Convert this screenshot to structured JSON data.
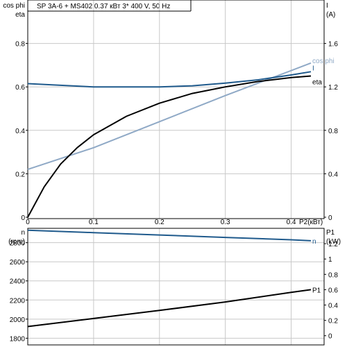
{
  "header": "SP 3A-6 + MS402    0.37 кВт   3* 400 V, 50 Hz",
  "chart_data": [
    {
      "type": "line",
      "grid": true,
      "x_axis": {
        "label": "P2(кВт)",
        "range": [
          0,
          0.45
        ],
        "ticks": [
          0,
          0.1,
          0.2,
          0.3,
          0.4
        ],
        "tick_labels": [
          "0",
          "0.1",
          "0.2",
          "0.3",
          "0.4"
        ]
      },
      "y_left": {
        "label_lines": [
          "cos phi",
          "eta"
        ],
        "range": [
          0,
          1.0
        ],
        "ticks": [
          0,
          0.2,
          0.4,
          0.6,
          0.8
        ],
        "tick_labels": [
          "0",
          "0.2",
          "0.4",
          "0.6",
          "0.8"
        ]
      },
      "y_right": {
        "label_lines": [
          "I",
          "(A)"
        ],
        "range": [
          0,
          2.0
        ],
        "ticks": [
          0,
          0.4,
          0.8,
          1.2,
          1.6
        ],
        "tick_labels": [
          "0",
          "0.4",
          "0.8",
          "1.2",
          "1.6"
        ]
      },
      "series": [
        {
          "name": "cos phi",
          "axis": "left",
          "color": "#8fa9c6",
          "x": [
            0,
            0.1,
            0.2,
            0.3,
            0.4,
            0.43
          ],
          "y": [
            0.22,
            0.32,
            0.44,
            0.56,
            0.675,
            0.71
          ]
        },
        {
          "name": "I",
          "axis": "right",
          "color": "#1f5a8c",
          "x": [
            0,
            0.05,
            0.1,
            0.15,
            0.2,
            0.25,
            0.3,
            0.35,
            0.4,
            0.43
          ],
          "y": [
            1.23,
            1.215,
            1.2,
            1.2,
            1.2,
            1.21,
            1.235,
            1.265,
            1.31,
            1.34
          ]
        },
        {
          "name": "eta",
          "axis": "left",
          "color": "#000000",
          "x": [
            0,
            0.025,
            0.05,
            0.075,
            0.1,
            0.15,
            0.2,
            0.25,
            0.3,
            0.35,
            0.4,
            0.43
          ],
          "y": [
            0,
            0.14,
            0.245,
            0.32,
            0.38,
            0.465,
            0.525,
            0.57,
            0.6,
            0.625,
            0.643,
            0.65
          ]
        }
      ]
    },
    {
      "type": "line",
      "grid": true,
      "x_axis": {
        "range": [
          0,
          0.45
        ],
        "ticks": [
          0,
          0.1,
          0.2,
          0.3,
          0.4
        ]
      },
      "y_left": {
        "label_lines": [
          "n",
          "(rpm)"
        ],
        "range": [
          1730,
          2950
        ],
        "ticks": [
          1800,
          2000,
          2200,
          2400,
          2600,
          2800
        ],
        "tick_labels": [
          "1800",
          "2000",
          "2200",
          "2400",
          "2600",
          "2800"
        ]
      },
      "y_right": {
        "label_lines": [
          "P1",
          "(kW)"
        ],
        "range": [
          -0.12,
          1.4
        ],
        "ticks": [
          0,
          0.2,
          0.4,
          0.6,
          0.8,
          1.0,
          1.2
        ],
        "tick_labels": [
          "0",
          "0.2",
          "0.4",
          "0.6",
          "0.8",
          "1",
          "1.2"
        ]
      },
      "series": [
        {
          "name": "n",
          "axis": "left",
          "color": "#1f5a8c",
          "x": [
            0,
            0.1,
            0.2,
            0.3,
            0.4,
            0.43
          ],
          "y": [
            2930,
            2905,
            2880,
            2855,
            2830,
            2820
          ]
        },
        {
          "name": "P1",
          "axis": "right",
          "color": "#000000",
          "x": [
            0,
            0.1,
            0.2,
            0.3,
            0.4,
            0.43
          ],
          "y": [
            0.12,
            0.225,
            0.33,
            0.44,
            0.565,
            0.6
          ]
        }
      ]
    }
  ]
}
